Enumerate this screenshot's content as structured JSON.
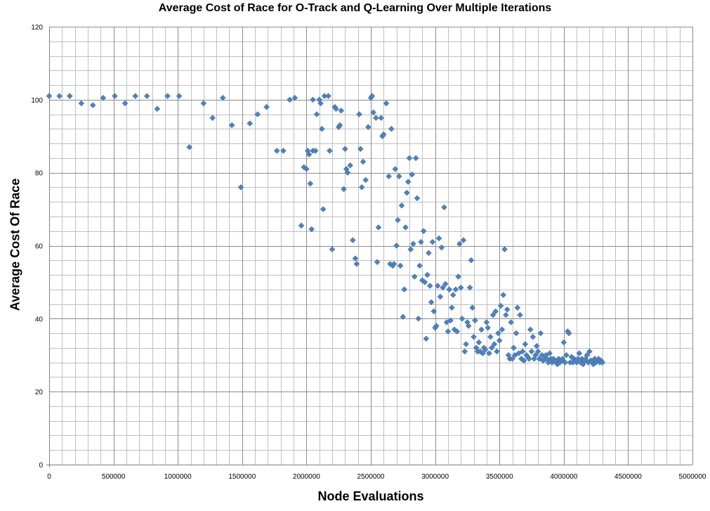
{
  "chart_data": {
    "type": "scatter",
    "title": "Average Cost of Race for O-Track and Q-Learning Over Multiple Iterations",
    "xlabel": "Node Evaluations",
    "ylabel": "Average Cost Of Race",
    "xlim": [
      0,
      5000000
    ],
    "ylim": [
      0,
      120
    ],
    "x_ticks": [
      0,
      500000,
      1000000,
      1500000,
      2000000,
      2500000,
      3000000,
      3500000,
      4000000,
      4500000,
      5000000
    ],
    "x_tick_labels": [
      "0",
      "500000",
      "1000000",
      "1500000",
      "2000000",
      "2500000",
      "3000000",
      "3500000",
      "4000000",
      "4500000",
      "5000000"
    ],
    "y_ticks": [
      0,
      20,
      40,
      60,
      80,
      100,
      120
    ],
    "y_tick_labels": [
      "0",
      "20",
      "40",
      "60",
      "80",
      "100",
      "120"
    ],
    "grid": true,
    "marker_color": "#4f81bd",
    "series": [
      {
        "points": [
          [
            0,
            101
          ],
          [
            80000,
            101
          ],
          [
            160000,
            101
          ],
          [
            250000,
            99
          ],
          [
            340000,
            98.5
          ],
          [
            420000,
            100.5
          ],
          [
            510000,
            101
          ],
          [
            590000,
            99
          ],
          [
            670000,
            101
          ],
          [
            760000,
            101
          ],
          [
            840000,
            97.5
          ],
          [
            920000,
            101
          ],
          [
            1010000,
            101
          ],
          [
            1090000,
            87
          ],
          [
            1200000,
            99
          ],
          [
            1270000,
            95
          ],
          [
            1350000,
            100.5
          ],
          [
            1420000,
            93
          ],
          [
            1490000,
            76
          ],
          [
            1560000,
            93.5
          ],
          [
            1620000,
            96
          ],
          [
            1690000,
            98
          ],
          [
            1770000,
            86
          ],
          [
            1820000,
            86
          ],
          [
            1870000,
            100
          ],
          [
            1910000,
            100.5
          ],
          [
            1960000,
            65.5
          ],
          [
            1980000,
            81.5
          ],
          [
            2000000,
            81
          ],
          [
            2010000,
            86
          ],
          [
            2020000,
            85
          ],
          [
            2030000,
            77
          ],
          [
            2040000,
            64.5
          ],
          [
            2050000,
            86
          ],
          [
            2050000,
            100
          ],
          [
            2070000,
            86
          ],
          [
            2080000,
            96
          ],
          [
            2100000,
            100
          ],
          [
            2110000,
            99
          ],
          [
            2120000,
            92
          ],
          [
            2130000,
            70
          ],
          [
            2140000,
            101
          ],
          [
            2170000,
            101
          ],
          [
            2180000,
            86
          ],
          [
            2200000,
            59
          ],
          [
            2220000,
            98
          ],
          [
            2230000,
            97.5
          ],
          [
            2250000,
            92.5
          ],
          [
            2260000,
            93
          ],
          [
            2270000,
            97
          ],
          [
            2290000,
            75.5
          ],
          [
            2300000,
            86.5
          ],
          [
            2310000,
            81
          ],
          [
            2320000,
            80
          ],
          [
            2340000,
            82
          ],
          [
            2360000,
            61.5
          ],
          [
            2380000,
            56.5
          ],
          [
            2390000,
            55
          ],
          [
            2410000,
            96
          ],
          [
            2420000,
            86.5
          ],
          [
            2430000,
            76
          ],
          [
            2440000,
            83
          ],
          [
            2460000,
            78
          ],
          [
            2480000,
            92.5
          ],
          [
            2500000,
            100.5
          ],
          [
            2510000,
            101
          ],
          [
            2520000,
            96.5
          ],
          [
            2540000,
            95
          ],
          [
            2550000,
            55.5
          ],
          [
            2560000,
            65
          ],
          [
            2580000,
            95
          ],
          [
            2590000,
            90
          ],
          [
            2600000,
            90.5
          ],
          [
            2620000,
            99
          ],
          [
            2640000,
            79
          ],
          [
            2650000,
            55
          ],
          [
            2660000,
            92
          ],
          [
            2670000,
            54.5
          ],
          [
            2680000,
            55
          ],
          [
            2690000,
            81
          ],
          [
            2700000,
            60
          ],
          [
            2710000,
            67
          ],
          [
            2720000,
            79
          ],
          [
            2730000,
            54.5
          ],
          [
            2740000,
            71
          ],
          [
            2750000,
            40.5
          ],
          [
            2760000,
            48
          ],
          [
            2770000,
            65
          ],
          [
            2780000,
            74.5
          ],
          [
            2790000,
            77.5
          ],
          [
            2800000,
            84
          ],
          [
            2810000,
            59
          ],
          [
            2820000,
            79.5
          ],
          [
            2830000,
            60.5
          ],
          [
            2840000,
            51.5
          ],
          [
            2850000,
            84
          ],
          [
            2860000,
            73
          ],
          [
            2870000,
            40
          ],
          [
            2880000,
            54.5
          ],
          [
            2890000,
            61
          ],
          [
            2900000,
            50.5
          ],
          [
            2910000,
            64
          ],
          [
            2920000,
            50
          ],
          [
            2930000,
            34.5
          ],
          [
            2940000,
            52
          ],
          [
            2950000,
            58
          ],
          [
            2960000,
            49
          ],
          [
            2970000,
            44.5
          ],
          [
            2980000,
            61
          ],
          [
            2990000,
            42
          ],
          [
            3000000,
            37.5
          ],
          [
            3010000,
            38
          ],
          [
            3020000,
            49
          ],
          [
            3030000,
            62
          ],
          [
            3040000,
            46
          ],
          [
            3050000,
            59.5
          ],
          [
            3060000,
            48.5
          ],
          [
            3070000,
            70.5
          ],
          [
            3080000,
            49.5
          ],
          [
            3090000,
            39
          ],
          [
            3100000,
            36.5
          ],
          [
            3110000,
            48
          ],
          [
            3120000,
            39.5
          ],
          [
            3130000,
            43
          ],
          [
            3140000,
            46.5
          ],
          [
            3150000,
            37
          ],
          [
            3160000,
            48
          ],
          [
            3170000,
            36.5
          ],
          [
            3180000,
            51.5
          ],
          [
            3190000,
            60.5
          ],
          [
            3200000,
            48.5
          ],
          [
            3210000,
            40
          ],
          [
            3220000,
            61.5
          ],
          [
            3230000,
            31
          ],
          [
            3240000,
            33
          ],
          [
            3250000,
            39
          ],
          [
            3260000,
            38
          ],
          [
            3270000,
            48.5
          ],
          [
            3280000,
            56
          ],
          [
            3290000,
            43
          ],
          [
            3300000,
            35
          ],
          [
            3310000,
            39.5
          ],
          [
            3320000,
            32
          ],
          [
            3330000,
            31
          ],
          [
            3340000,
            33.5
          ],
          [
            3350000,
            31
          ],
          [
            3360000,
            37
          ],
          [
            3370000,
            30.5
          ],
          [
            3380000,
            32
          ],
          [
            3390000,
            31.5
          ],
          [
            3400000,
            39
          ],
          [
            3410000,
            37.5
          ],
          [
            3420000,
            30.5
          ],
          [
            3430000,
            35
          ],
          [
            3440000,
            32
          ],
          [
            3450000,
            41
          ],
          [
            3460000,
            33
          ],
          [
            3470000,
            42
          ],
          [
            3480000,
            31
          ],
          [
            3490000,
            36
          ],
          [
            3500000,
            34
          ],
          [
            3510000,
            43.5
          ],
          [
            3520000,
            37
          ],
          [
            3530000,
            46.5
          ],
          [
            3540000,
            59
          ],
          [
            3550000,
            41
          ],
          [
            3560000,
            42.5
          ],
          [
            3570000,
            30
          ],
          [
            3580000,
            29
          ],
          [
            3590000,
            39
          ],
          [
            3600000,
            29
          ],
          [
            3610000,
            32
          ],
          [
            3620000,
            30
          ],
          [
            3630000,
            36
          ],
          [
            3640000,
            43
          ],
          [
            3650000,
            30.5
          ],
          [
            3660000,
            41
          ],
          [
            3670000,
            29
          ],
          [
            3680000,
            31
          ],
          [
            3690000,
            28.5
          ],
          [
            3700000,
            33
          ],
          [
            3710000,
            30
          ],
          [
            3720000,
            29.5
          ],
          [
            3730000,
            29
          ],
          [
            3740000,
            37
          ],
          [
            3750000,
            31
          ],
          [
            3760000,
            35
          ],
          [
            3770000,
            29
          ],
          [
            3780000,
            30
          ],
          [
            3790000,
            32.5
          ],
          [
            3800000,
            31
          ],
          [
            3810000,
            29
          ],
          [
            3820000,
            36
          ],
          [
            3830000,
            30
          ],
          [
            3840000,
            28.5
          ],
          [
            3850000,
            29
          ],
          [
            3860000,
            30
          ],
          [
            3870000,
            29
          ],
          [
            3880000,
            28
          ],
          [
            3890000,
            30.5
          ],
          [
            3900000,
            29
          ],
          [
            3910000,
            28
          ],
          [
            3920000,
            29
          ],
          [
            3930000,
            28.5
          ],
          [
            3940000,
            28
          ],
          [
            3950000,
            27.5
          ],
          [
            3960000,
            29
          ],
          [
            3970000,
            28
          ],
          [
            3980000,
            28.5
          ],
          [
            3990000,
            29
          ],
          [
            4000000,
            33.5
          ],
          [
            4010000,
            28
          ],
          [
            4020000,
            30
          ],
          [
            4030000,
            36.5
          ],
          [
            4040000,
            36
          ],
          [
            4050000,
            28
          ],
          [
            4060000,
            29.5
          ],
          [
            4070000,
            28
          ],
          [
            4080000,
            29
          ],
          [
            4090000,
            28.5
          ],
          [
            4100000,
            28
          ],
          [
            4110000,
            29
          ],
          [
            4120000,
            30.5
          ],
          [
            4130000,
            28
          ],
          [
            4140000,
            29
          ],
          [
            4150000,
            27.5
          ],
          [
            4160000,
            28.5
          ],
          [
            4170000,
            29
          ],
          [
            4180000,
            30
          ],
          [
            4190000,
            28
          ],
          [
            4200000,
            31
          ],
          [
            4210000,
            28.5
          ],
          [
            4220000,
            28
          ],
          [
            4230000,
            27.5
          ],
          [
            4240000,
            29
          ],
          [
            4250000,
            28
          ],
          [
            4260000,
            28.5
          ],
          [
            4270000,
            29
          ],
          [
            4280000,
            28
          ],
          [
            4290000,
            28.5
          ],
          [
            4300000,
            28
          ]
        ]
      }
    ]
  }
}
